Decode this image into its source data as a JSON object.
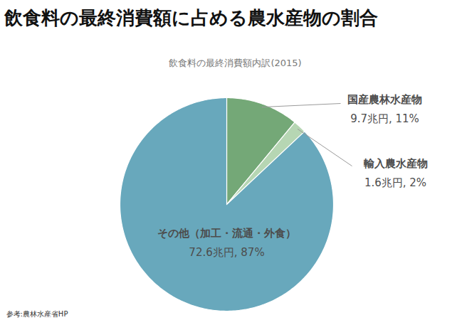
{
  "chart_data": {
    "type": "pie",
    "title": "飲食料の最終消費額に占める農水産物の割合",
    "subtitle": "飲食料の最終消費額内訳(2015)",
    "caption": "参考:農林水産省HP",
    "categories": [
      "国産農林水産物",
      "輸入農水産物",
      "その他（加工・流通・外食）"
    ],
    "values": [
      11,
      2,
      87
    ],
    "value_labels": [
      "9.7兆円, 11%",
      "1.6兆円, 2%",
      "72.6兆円, 87%"
    ],
    "colors": [
      "#74a877",
      "#b6d6b3",
      "#68a8bc"
    ],
    "data_labels": true
  }
}
